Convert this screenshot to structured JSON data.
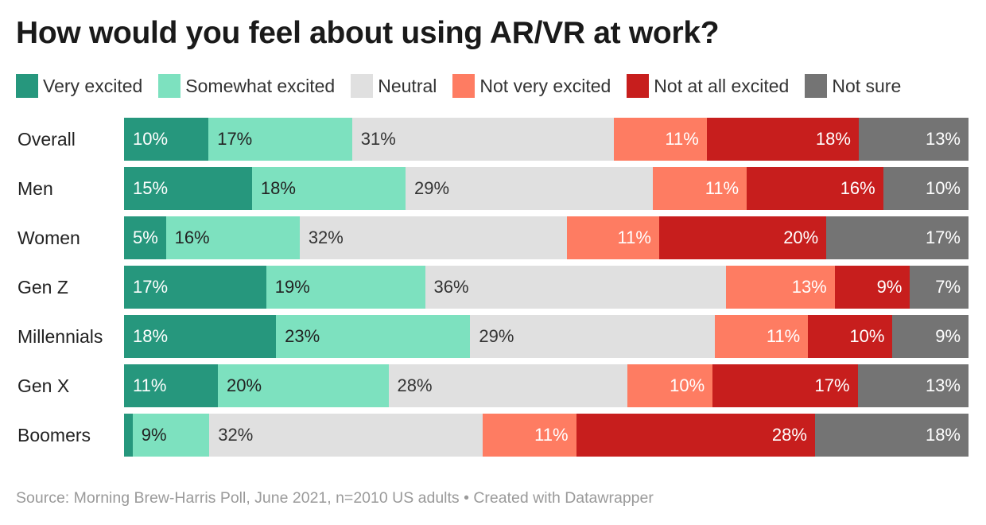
{
  "title": "How would you feel about using AR/VR at work?",
  "source": "Source: Morning Brew-Harris Poll, June 2021, n=2010 US adults • Created with Datawrapper",
  "chart_data": {
    "type": "bar",
    "orientation": "horizontal",
    "stacked": true,
    "normalized": true,
    "title": "How would you feel about using AR/VR at work?",
    "legend_position": "top",
    "categories": [
      "Overall",
      "Men",
      "Women",
      "Gen Z",
      "Millennials",
      "Gen X",
      "Boomers"
    ],
    "series": [
      {
        "name": "Very excited",
        "color": "#26977d",
        "text_color": "#ffffff",
        "align": "left",
        "values": [
          10,
          15,
          5,
          17,
          18,
          11,
          1
        ],
        "labels": [
          "10%",
          "15%",
          "5%",
          "17%",
          "18%",
          "11%",
          ""
        ]
      },
      {
        "name": "Somewhat excited",
        "color": "#7de1bf",
        "text_color": "#222222",
        "align": "left",
        "values": [
          17,
          18,
          16,
          19,
          23,
          20,
          9
        ],
        "labels": [
          "17%",
          "18%",
          "16%",
          "19%",
          "23%",
          "20%",
          "9%"
        ]
      },
      {
        "name": "Neutral",
        "color": "#e0e0e0",
        "text_color": "#333333",
        "align": "left",
        "values": [
          31,
          29,
          32,
          36,
          29,
          28,
          32
        ],
        "labels": [
          "31%",
          "29%",
          "32%",
          "36%",
          "29%",
          "28%",
          "32%"
        ]
      },
      {
        "name": "Not very excited",
        "color": "#fe7c62",
        "text_color": "#ffffff",
        "align": "right",
        "values": [
          11,
          11,
          11,
          13,
          11,
          10,
          11
        ],
        "labels": [
          "11%",
          "11%",
          "11%",
          "13%",
          "11%",
          "10%",
          "11%"
        ]
      },
      {
        "name": "Not at all excited",
        "color": "#c71e1d",
        "text_color": "#ffffff",
        "align": "right",
        "values": [
          18,
          16,
          20,
          9,
          10,
          17,
          28
        ],
        "labels": [
          "18%",
          "16%",
          "20%",
          "9%",
          "10%",
          "17%",
          "28%"
        ]
      },
      {
        "name": "Not sure",
        "color": "#747474",
        "text_color": "#ffffff",
        "align": "right",
        "values": [
          13,
          10,
          17,
          7,
          9,
          13,
          18
        ],
        "labels": [
          "13%",
          "10%",
          "17%",
          "7%",
          "9%",
          "13%",
          "18%"
        ]
      }
    ]
  }
}
